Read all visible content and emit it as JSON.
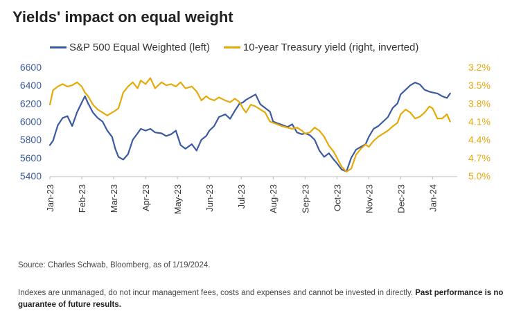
{
  "title": "Yields' impact on equal weight",
  "legend": {
    "left_label": "S&P 500 Equal Weighted (left)",
    "right_label": "10-year Treasury yield (right, inverted)"
  },
  "source": "Source: Charles Schwab, Bloomberg, as of 1/19/2024.",
  "disclaimer": {
    "text": "Indexes are unmanaged, do not incur management fees, costs and expenses and cannot be invested in directly. ",
    "bold": "Past performance is no guarantee of future results."
  },
  "colors": {
    "sp500": "#3b5aa0",
    "treasury": "#e6a90a",
    "left_axis_text": "#3b5aa0",
    "right_axis_text": "#e6a90a"
  },
  "chart_data": {
    "type": "line",
    "x_tick_labels": [
      "Jan-23",
      "Feb-23",
      "Mar-23",
      "Apr-23",
      "May-23",
      "Jun-23",
      "Jul-23",
      "Aug-23",
      "Sep-23",
      "Oct-23",
      "Nov-23",
      "Dec-23",
      "Jan-24"
    ],
    "x_range": [
      0,
      12.6
    ],
    "y_left": {
      "ticks": [
        5400,
        5600,
        5800,
        6000,
        6200,
        6400,
        6600
      ],
      "range": [
        5400,
        6600
      ]
    },
    "y_right": {
      "inverted": true,
      "range": [
        3.2,
        5.0
      ],
      "tick_labels": [
        "3.2%",
        "3.5%",
        "3.8%",
        "4.1%",
        "4.4%",
        "4.7%",
        "5.0%"
      ],
      "tick_values": [
        3.2,
        3.5,
        3.8,
        4.1,
        4.4,
        4.7,
        5.0
      ]
    },
    "series": [
      {
        "name": "S&P 500 Equal Weighted (left)",
        "axis": "left",
        "x": [
          0,
          0.1,
          0.25,
          0.4,
          0.55,
          0.7,
          0.85,
          1.0,
          1.1,
          1.2,
          1.35,
          1.5,
          1.65,
          1.8,
          1.95,
          2.05,
          2.15,
          2.3,
          2.45,
          2.6,
          2.75,
          2.85,
          3.0,
          3.15,
          3.3,
          3.5,
          3.65,
          3.8,
          3.95,
          4.1,
          4.25,
          4.45,
          4.6,
          4.75,
          4.9,
          5.0,
          5.15,
          5.3,
          5.5,
          5.65,
          5.8,
          5.95,
          6.05,
          6.15,
          6.3,
          6.45,
          6.6,
          6.75,
          6.9,
          7.0,
          7.15,
          7.3,
          7.45,
          7.6,
          7.75,
          7.9,
          8.0,
          8.15,
          8.3,
          8.45,
          8.6,
          8.75,
          8.9,
          9.0,
          9.15,
          9.3,
          9.45,
          9.6,
          9.75,
          9.9,
          10.0,
          10.15,
          10.3,
          10.45,
          10.6,
          10.75,
          10.9,
          11.0,
          11.15,
          11.3,
          11.45,
          11.6,
          11.75,
          11.9,
          12.0,
          12.15,
          12.3,
          12.45,
          12.55
        ],
        "values": [
          5740,
          5790,
          5960,
          6040,
          6060,
          5950,
          6100,
          6210,
          6280,
          6200,
          6100,
          6040,
          6000,
          5900,
          5830,
          5700,
          5610,
          5580,
          5640,
          5800,
          5870,
          5920,
          5900,
          5920,
          5880,
          5870,
          5840,
          5860,
          5900,
          5740,
          5700,
          5750,
          5680,
          5800,
          5840,
          5900,
          5950,
          6050,
          6080,
          6030,
          6120,
          6200,
          6210,
          6240,
          6270,
          6300,
          6190,
          6150,
          6110,
          6000,
          5980,
          5960,
          5940,
          5970,
          5880,
          5860,
          5870,
          5850,
          5800,
          5680,
          5610,
          5650,
          5580,
          5540,
          5470,
          5450,
          5600,
          5690,
          5720,
          5750,
          5830,
          5920,
          5950,
          6000,
          6050,
          6150,
          6200,
          6300,
          6350,
          6400,
          6430,
          6410,
          6350,
          6330,
          6320,
          6310,
          6280,
          6260,
          6310
        ]
      },
      {
        "name": "10-year Treasury yield (right, inverted)",
        "axis": "right",
        "x": [
          0,
          0.1,
          0.25,
          0.4,
          0.55,
          0.7,
          0.85,
          1.0,
          1.1,
          1.2,
          1.35,
          1.5,
          1.65,
          1.8,
          1.95,
          2.05,
          2.15,
          2.3,
          2.45,
          2.6,
          2.75,
          2.85,
          3.0,
          3.15,
          3.3,
          3.5,
          3.65,
          3.8,
          3.95,
          4.1,
          4.25,
          4.45,
          4.6,
          4.75,
          4.9,
          5.0,
          5.15,
          5.3,
          5.5,
          5.65,
          5.8,
          5.95,
          6.05,
          6.15,
          6.3,
          6.45,
          6.6,
          6.75,
          6.9,
          7.0,
          7.15,
          7.3,
          7.45,
          7.6,
          7.75,
          7.9,
          8.0,
          8.15,
          8.3,
          8.45,
          8.6,
          8.75,
          8.9,
          9.0,
          9.15,
          9.3,
          9.45,
          9.6,
          9.75,
          9.9,
          10.0,
          10.15,
          10.3,
          10.45,
          10.6,
          10.75,
          10.9,
          11.0,
          11.15,
          11.3,
          11.45,
          11.6,
          11.75,
          11.9,
          12.0,
          12.15,
          12.3,
          12.45,
          12.55
        ],
        "values": [
          3.82,
          3.58,
          3.52,
          3.48,
          3.52,
          3.5,
          3.45,
          3.52,
          3.62,
          3.68,
          3.82,
          3.9,
          3.95,
          4.0,
          3.95,
          3.92,
          3.88,
          3.62,
          3.52,
          3.45,
          3.55,
          3.42,
          3.48,
          3.38,
          3.55,
          3.45,
          3.5,
          3.48,
          3.52,
          3.45,
          3.55,
          3.52,
          3.6,
          3.75,
          3.68,
          3.72,
          3.75,
          3.7,
          3.75,
          3.78,
          3.72,
          3.78,
          3.88,
          3.95,
          3.82,
          3.85,
          3.9,
          3.95,
          4.1,
          4.12,
          4.15,
          4.18,
          4.2,
          4.22,
          4.2,
          4.25,
          4.3,
          4.28,
          4.2,
          4.25,
          4.35,
          4.5,
          4.6,
          4.7,
          4.85,
          4.93,
          4.88,
          4.65,
          4.55,
          4.48,
          4.52,
          4.42,
          4.35,
          4.3,
          4.25,
          4.18,
          4.12,
          3.98,
          3.9,
          3.95,
          4.05,
          4.02,
          3.95,
          3.85,
          3.88,
          4.05,
          4.05,
          3.98,
          4.1
        ]
      }
    ]
  }
}
